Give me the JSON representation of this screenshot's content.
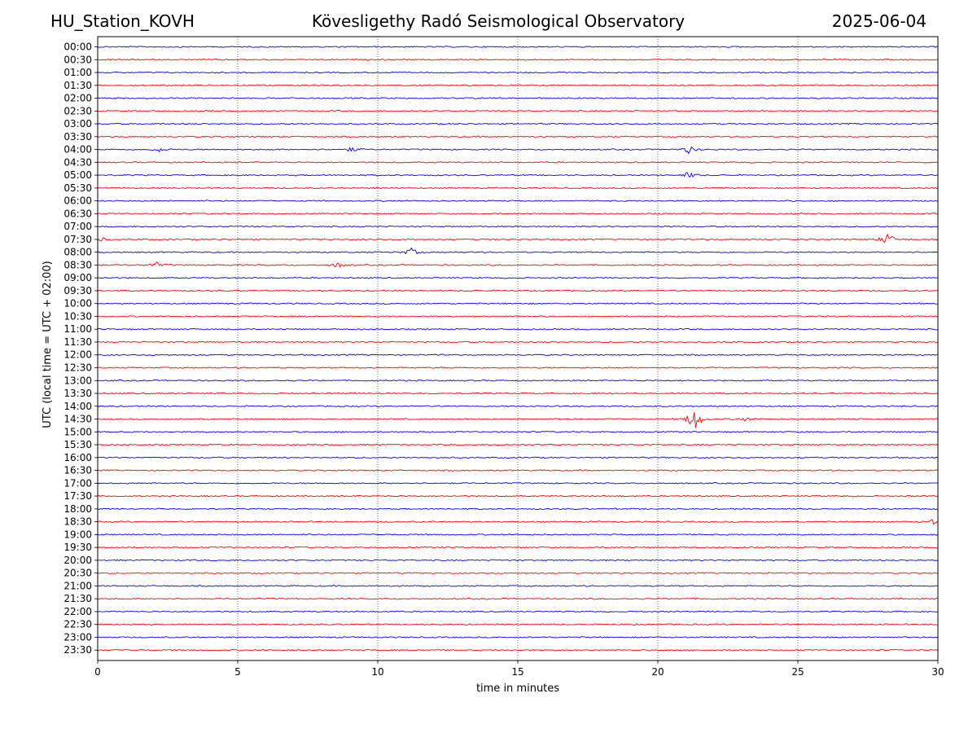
{
  "header": {
    "station": "HU_Station_KOVH",
    "observatory": "Kövesligethy Radó Seismological Observatory",
    "date": "2025-06-04"
  },
  "chart_data": {
    "type": "line",
    "title": "Kövesligethy Radó Seismological Observatory",
    "xlabel": "time in minutes",
    "ylabel": "UTC (local time = UTC + 02:00)",
    "xlim": [
      0,
      30
    ],
    "x_ticks": [
      0,
      5,
      10,
      15,
      20,
      25,
      30
    ],
    "grid": "vertical dotted at x ticks",
    "colors": {
      "even_rows": "#0000ff",
      "odd_rows": "#ff0000",
      "grid": "#000000"
    },
    "rows": [
      {
        "label": "00:00"
      },
      {
        "label": "00:30"
      },
      {
        "label": "01:00"
      },
      {
        "label": "01:30"
      },
      {
        "label": "02:00"
      },
      {
        "label": "02:30"
      },
      {
        "label": "03:00"
      },
      {
        "label": "03:30"
      },
      {
        "label": "04:00",
        "events": [
          {
            "t": 2.2,
            "amp": 0.25
          },
          {
            "t": 9.1,
            "amp": 0.3
          },
          {
            "t": 21.1,
            "amp": 0.45
          }
        ]
      },
      {
        "label": "04:30"
      },
      {
        "label": "05:00",
        "events": [
          {
            "t": 21.1,
            "amp": 0.4
          }
        ]
      },
      {
        "label": "05:30"
      },
      {
        "label": "06:00"
      },
      {
        "label": "06:30"
      },
      {
        "label": "07:00"
      },
      {
        "label": "07:30",
        "events": [
          {
            "t": 0.1,
            "amp": 0.3
          },
          {
            "t": 28.2,
            "amp": 0.8
          }
        ]
      },
      {
        "label": "08:00",
        "events": [
          {
            "t": 11.2,
            "amp": 0.45
          }
        ]
      },
      {
        "label": "08:30",
        "events": [
          {
            "t": 2.1,
            "amp": 0.3
          },
          {
            "t": 8.6,
            "amp": 0.3
          }
        ]
      },
      {
        "label": "09:00"
      },
      {
        "label": "09:30"
      },
      {
        "label": "10:00"
      },
      {
        "label": "10:30"
      },
      {
        "label": "11:00"
      },
      {
        "label": "11:30"
      },
      {
        "label": "12:00"
      },
      {
        "label": "12:30"
      },
      {
        "label": "13:00"
      },
      {
        "label": "13:30"
      },
      {
        "label": "14:00"
      },
      {
        "label": "14:30",
        "events": [
          {
            "t": 21.3,
            "amp": 1.6
          },
          {
            "t": 23.1,
            "amp": 0.25
          }
        ]
      },
      {
        "label": "15:00"
      },
      {
        "label": "15:30"
      },
      {
        "label": "16:00"
      },
      {
        "label": "16:30"
      },
      {
        "label": "17:00"
      },
      {
        "label": "17:30"
      },
      {
        "label": "18:00"
      },
      {
        "label": "18:30",
        "events": [
          {
            "t": 29.8,
            "amp": 0.35
          }
        ]
      },
      {
        "label": "19:00"
      },
      {
        "label": "19:30"
      },
      {
        "label": "20:00"
      },
      {
        "label": "20:30"
      },
      {
        "label": "21:00"
      },
      {
        "label": "21:30"
      },
      {
        "label": "22:00"
      },
      {
        "label": "22:30"
      },
      {
        "label": "23:00"
      },
      {
        "label": "23:30"
      }
    ]
  }
}
